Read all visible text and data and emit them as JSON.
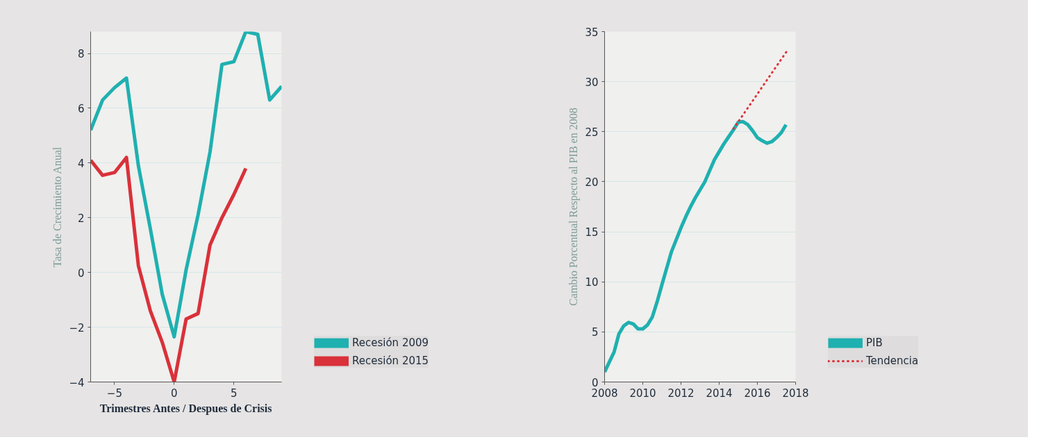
{
  "chart_data": [
    {
      "type": "line",
      "xlabel": "Trimestres Antes / Despues de Crisis",
      "ylabel": "Tasa de Crecimiento Anual",
      "xlim": [
        -7,
        9
      ],
      "xticks": [
        -5,
        0,
        5
      ],
      "ylim": [
        -4,
        8.8
      ],
      "yticks": [
        -4,
        -2,
        0,
        2,
        4,
        6,
        8
      ],
      "grid": "y",
      "legend": "bottom right",
      "line_style": "solid",
      "series": [
        {
          "name": "Recesión 2009",
          "color": "#1fb0b0",
          "x": [
            -7,
            -6,
            -5,
            -4,
            -3,
            -2,
            -1,
            0,
            1,
            2,
            3,
            4,
            5,
            6,
            7,
            8,
            9
          ],
          "values": [
            5.2,
            6.3,
            6.75,
            7.1,
            3.9,
            1.6,
            -0.8,
            -2.35,
            0.1,
            2.1,
            4.4,
            7.6,
            7.7,
            8.8,
            8.7,
            6.3,
            6.8
          ]
        },
        {
          "name": "Recesión 2015",
          "color": "#d9313a",
          "x": [
            -7,
            -6,
            -5,
            -4,
            -3,
            -2,
            -1,
            0,
            1,
            2,
            3,
            4,
            5,
            6
          ],
          "values": [
            4.1,
            3.55,
            3.65,
            4.2,
            0.25,
            -1.4,
            -2.55,
            -4.0,
            -1.7,
            -1.5,
            1.0,
            2.0,
            2.85,
            3.8
          ]
        }
      ]
    },
    {
      "type": "line",
      "ylabel": "Cambio Porcentual Respecto al PIB en 2008",
      "xlim": [
        2008,
        2018
      ],
      "xticks": [
        2008,
        2010,
        2012,
        2014,
        2016,
        2018
      ],
      "ylim": [
        0,
        35
      ],
      "yticks": [
        0,
        5,
        10,
        15,
        20,
        25,
        30,
        35
      ],
      "grid": "y",
      "legend": "bottom right",
      "series": [
        {
          "name": "PIB",
          "color": "#1fb0b0",
          "line_style": "solid",
          "x": [
            2008,
            2008.5,
            2008.75,
            2009,
            2009.25,
            2009.5,
            2009.75,
            2010,
            2010.25,
            2010.5,
            2010.75,
            2011,
            2011.5,
            2012,
            2012.25,
            2012.5,
            2012.75,
            2013,
            2013.25,
            2013.5,
            2013.75,
            2014,
            2014.25,
            2014.5,
            2014.75,
            2015,
            2015.25,
            2015.5,
            2015.75,
            2016,
            2016.25,
            2016.5,
            2016.75,
            2017,
            2017.25,
            2017.5
          ],
          "values": [
            1.0,
            3.0,
            4.8,
            5.6,
            5.95,
            5.8,
            5.3,
            5.3,
            5.7,
            6.5,
            8.0,
            9.7,
            13.0,
            15.4,
            16.5,
            17.5,
            18.4,
            19.2,
            20.0,
            21.1,
            22.2,
            23.0,
            23.8,
            24.5,
            25.2,
            25.95,
            26.0,
            25.7,
            25.1,
            24.4,
            24.1,
            23.85,
            24.0,
            24.4,
            24.9,
            25.7
          ]
        },
        {
          "name": "Tendencia",
          "color": "#e0313a",
          "line_style": "dotted",
          "x": [
            2014.75,
            2017.6
          ],
          "values": [
            25.3,
            33.2
          ]
        }
      ]
    }
  ]
}
